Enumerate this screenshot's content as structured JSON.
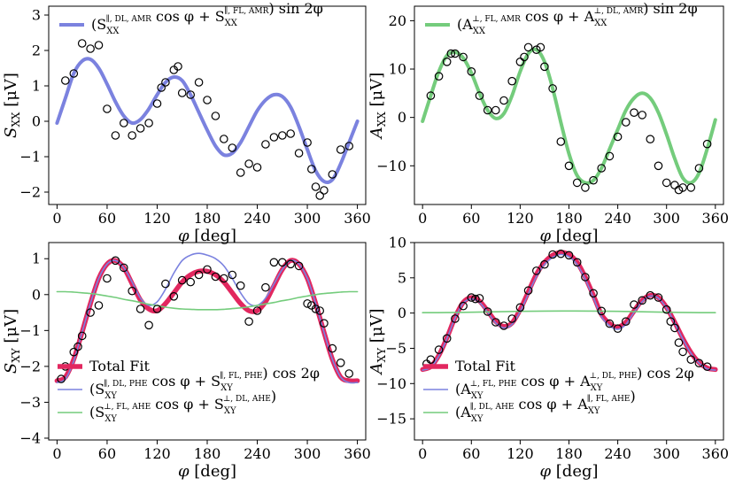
{
  "chart_data": [
    {
      "id": "sxx",
      "type": "line+scatter",
      "xlabel": "φ [deg]",
      "ylabel": "S_XX [μV]",
      "ylabel_main": "S",
      "ylabel_sub": "XX",
      "ylabel_unit": " [μV]",
      "xlim": [
        -10,
        370
      ],
      "ylim": [
        -2.35,
        3.25
      ],
      "xticks": [
        0,
        60,
        120,
        180,
        240,
        300,
        360
      ],
      "yticks": [
        -2,
        -1,
        0,
        1,
        2,
        3
      ],
      "legend_position": "top-center",
      "series": [
        {
          "name": "(S_XX^{∥, DL, AMR} cos φ + S_XX^{∥, FL, AMR}) sin 2φ",
          "kind": "line",
          "color": "#7b82df",
          "x": [
            0,
            10,
            20,
            30,
            40,
            50,
            60,
            70,
            80,
            90,
            100,
            110,
            120,
            130,
            140,
            150,
            160,
            170,
            180,
            190,
            200,
            210,
            220,
            230,
            240,
            250,
            260,
            270,
            280,
            290,
            300,
            310,
            320,
            330,
            340,
            350,
            360
          ],
          "y": [
            -0.05,
            0.65,
            1.35,
            1.7,
            1.75,
            1.5,
            1.05,
            0.55,
            0.15,
            -0.05,
            0.05,
            0.35,
            0.75,
            1.1,
            1.25,
            1.15,
            0.75,
            0.25,
            -0.25,
            -0.7,
            -0.95,
            -0.9,
            -0.6,
            -0.15,
            0.3,
            0.6,
            0.75,
            0.7,
            0.4,
            -0.15,
            -0.8,
            -1.4,
            -1.7,
            -1.65,
            -1.2,
            -0.6,
            0.0
          ]
        },
        {
          "name": "data",
          "kind": "scatter",
          "x": [
            10,
            20,
            30,
            40,
            50,
            60,
            70,
            80,
            90,
            100,
            110,
            120,
            125,
            130,
            140,
            145,
            150,
            160,
            170,
            180,
            190,
            200,
            210,
            220,
            230,
            240,
            250,
            260,
            270,
            280,
            290,
            300,
            305,
            310,
            315,
            320,
            330,
            340,
            350
          ],
          "y": [
            1.15,
            1.35,
            2.2,
            2.05,
            2.15,
            0.35,
            -0.4,
            -0.05,
            -0.4,
            -0.2,
            -0.05,
            0.5,
            0.95,
            1.1,
            1.45,
            1.55,
            0.8,
            0.75,
            1.1,
            0.6,
            0.15,
            -0.5,
            -0.75,
            -1.45,
            -1.2,
            -1.3,
            -0.65,
            -0.45,
            -0.4,
            -0.35,
            -0.9,
            -0.6,
            -1.35,
            -1.85,
            -2.1,
            -1.95,
            -1.5,
            -0.8,
            -0.7
          ]
        }
      ]
    },
    {
      "id": "axx",
      "type": "line+scatter",
      "xlabel": "φ [deg]",
      "ylabel": "A_XX [μV]",
      "ylabel_main": "A",
      "ylabel_sub": "XX",
      "ylabel_unit": " [μV]",
      "xlim": [
        -10,
        370
      ],
      "ylim": [
        -18,
        23
      ],
      "xticks": [
        0,
        60,
        120,
        180,
        240,
        300,
        360
      ],
      "yticks": [
        -10,
        0,
        10,
        20
      ],
      "legend_position": "top-center",
      "series": [
        {
          "name": "(A_XX^{⊥, FL, AMR} cos φ + A_XX^{⊥, DL, AMR}) sin 2φ",
          "kind": "line",
          "color": "#74cc7c",
          "x": [
            0,
            10,
            20,
            30,
            40,
            50,
            60,
            70,
            80,
            90,
            100,
            110,
            120,
            130,
            140,
            150,
            160,
            170,
            180,
            190,
            200,
            210,
            220,
            230,
            240,
            250,
            260,
            270,
            280,
            290,
            300,
            310,
            320,
            330,
            340,
            350,
            360
          ],
          "y": [
            -0.8,
            4.5,
            9.5,
            12.8,
            13.5,
            12.3,
            9.2,
            5,
            1.5,
            -0.2,
            0.8,
            4.5,
            9.5,
            13.2,
            14,
            11.5,
            6,
            -1,
            -7.5,
            -12,
            -13.5,
            -13,
            -10.5,
            -6.5,
            -2.5,
            1.5,
            4,
            5,
            4,
            1,
            -3.5,
            -8.5,
            -12.5,
            -13.5,
            -11.5,
            -6.5,
            -0.5
          ]
        },
        {
          "name": "data",
          "kind": "scatter",
          "x": [
            10,
            20,
            30,
            35,
            40,
            50,
            60,
            70,
            80,
            90,
            100,
            110,
            120,
            125,
            130,
            140,
            145,
            150,
            160,
            170,
            180,
            190,
            200,
            210,
            220,
            230,
            240,
            250,
            260,
            270,
            280,
            290,
            300,
            310,
            315,
            320,
            330,
            340,
            350
          ],
          "y": [
            4.5,
            8.5,
            11.5,
            13.2,
            13.2,
            12.5,
            9.5,
            4.5,
            1.5,
            1.5,
            3.5,
            7.5,
            11.5,
            12.5,
            14.5,
            14,
            14.5,
            10.5,
            6,
            -5,
            -10,
            -13.5,
            -14.5,
            -13,
            -10.5,
            -8,
            -4,
            -1,
            1,
            0.5,
            -4.5,
            -10,
            -13.5,
            -14,
            -15,
            -14.5,
            -14.5,
            -10.5,
            -5.5
          ]
        }
      ]
    },
    {
      "id": "sxy",
      "type": "line+scatter",
      "xlabel": "φ [deg]",
      "ylabel": "S_XY [μV]",
      "ylabel_main": "S",
      "ylabel_sub": "XY",
      "ylabel_unit": " [μV]",
      "xlim": [
        -10,
        370
      ],
      "ylim": [
        -4.05,
        1.45
      ],
      "xticks": [
        0,
        60,
        120,
        180,
        240,
        300,
        360
      ],
      "yticks": [
        -4,
        -3,
        -2,
        -1,
        0,
        1
      ],
      "legend_position": "bottom-left",
      "series": [
        {
          "name": "Total Fit",
          "kind": "line",
          "color": "#e2275f",
          "x": [
            0,
            10,
            20,
            30,
            40,
            50,
            60,
            70,
            80,
            90,
            100,
            110,
            120,
            130,
            140,
            150,
            160,
            170,
            180,
            190,
            200,
            210,
            220,
            230,
            240,
            250,
            260,
            270,
            280,
            290,
            300,
            310,
            320,
            330,
            340,
            350,
            360
          ],
          "y": [
            -2.4,
            -2.3,
            -1.8,
            -1.05,
            -0.25,
            0.45,
            0.85,
            0.95,
            0.75,
            0.3,
            -0.15,
            -0.4,
            -0.45,
            -0.25,
            0.05,
            0.35,
            0.55,
            0.65,
            0.65,
            0.55,
            0.35,
            0.05,
            -0.25,
            -0.45,
            -0.45,
            -0.2,
            0.25,
            0.7,
            0.95,
            0.85,
            0.45,
            -0.25,
            -1.05,
            -1.8,
            -2.3,
            -2.4,
            -2.4
          ]
        },
        {
          "name": "(S_XY^{∥, DL, PHE} cos φ + S_XY^{∥, FL, PHE}) cos 2φ",
          "kind": "line",
          "color": "#7b82df",
          "x": [
            0,
            10,
            20,
            30,
            40,
            50,
            60,
            70,
            80,
            90,
            100,
            110,
            120,
            130,
            140,
            150,
            160,
            170,
            180,
            190,
            200,
            210,
            220,
            230,
            240,
            250,
            260,
            270,
            280,
            290,
            300,
            310,
            320,
            330,
            340,
            350,
            360
          ],
          "y": [
            -2.45,
            -2.35,
            -1.85,
            -1.05,
            -0.25,
            0.45,
            0.85,
            0.95,
            0.75,
            0.35,
            -0.1,
            -0.3,
            -0.2,
            0.15,
            0.6,
            0.95,
            1.1,
            1.15,
            1.1,
            1.0,
            0.8,
            0.45,
            0.05,
            -0.25,
            -0.3,
            -0.1,
            0.3,
            0.7,
            0.95,
            0.85,
            0.45,
            -0.25,
            -1.05,
            -1.8,
            -2.3,
            -2.45,
            -2.45
          ]
        },
        {
          "name": "(S_XY^{⊥, FL, AHE} cos φ + S_XY^{⊥, DL, AHE})",
          "kind": "line",
          "color": "#74cc7c",
          "x": [
            0,
            10,
            20,
            30,
            40,
            50,
            60,
            70,
            80,
            90,
            100,
            110,
            120,
            130,
            140,
            150,
            160,
            170,
            180,
            190,
            200,
            210,
            220,
            230,
            240,
            250,
            260,
            270,
            280,
            290,
            300,
            310,
            320,
            330,
            340,
            350,
            360
          ],
          "y": [
            0.08,
            0.08,
            0.07,
            0.05,
            0.03,
            0.0,
            -0.04,
            -0.08,
            -0.13,
            -0.17,
            -0.22,
            -0.27,
            -0.31,
            -0.35,
            -0.38,
            -0.4,
            -0.41,
            -0.42,
            -0.42,
            -0.42,
            -0.41,
            -0.39,
            -0.37,
            -0.34,
            -0.3,
            -0.26,
            -0.22,
            -0.17,
            -0.13,
            -0.08,
            -0.04,
            0.0,
            0.03,
            0.05,
            0.07,
            0.08,
            0.08
          ]
        },
        {
          "name": "data",
          "kind": "scatter",
          "x": [
            5,
            10,
            20,
            25,
            30,
            40,
            50,
            60,
            70,
            80,
            90,
            100,
            110,
            120,
            130,
            140,
            150,
            160,
            170,
            180,
            190,
            200,
            210,
            220,
            230,
            240,
            250,
            260,
            270,
            280,
            290,
            300,
            305,
            310,
            315,
            320,
            330,
            340,
            350
          ],
          "y": [
            -2.35,
            -2.0,
            -1.6,
            -1.45,
            -1.15,
            -0.5,
            -0.3,
            0.45,
            0.95,
            0.75,
            0.1,
            -0.4,
            -0.85,
            -0.4,
            0.3,
            -0.05,
            0.4,
            0.35,
            0.55,
            0.7,
            0.5,
            0.45,
            0.55,
            0.25,
            -0.75,
            -0.45,
            0.2,
            0.9,
            0.9,
            0.85,
            0.8,
            -0.25,
            -0.3,
            -0.4,
            -0.45,
            -0.8,
            -1.5,
            -1.9,
            -2.2
          ]
        }
      ]
    },
    {
      "id": "axy",
      "type": "line+scatter",
      "xlabel": "φ [deg]",
      "ylabel": "A_XY [μV]",
      "ylabel_main": "A",
      "ylabel_sub": "XY",
      "ylabel_unit": " [μV]",
      "xlim": [
        -10,
        370
      ],
      "ylim": [
        -18,
        10
      ],
      "xticks": [
        0,
        60,
        120,
        180,
        240,
        300,
        360
      ],
      "yticks": [
        -15,
        -10,
        -5,
        0,
        5,
        10
      ],
      "legend_position": "bottom-center",
      "series": [
        {
          "name": "Total Fit",
          "kind": "line",
          "color": "#e2275f",
          "x": [
            0,
            10,
            20,
            30,
            40,
            50,
            60,
            70,
            80,
            90,
            100,
            110,
            120,
            130,
            140,
            150,
            160,
            170,
            180,
            190,
            200,
            210,
            220,
            230,
            240,
            250,
            260,
            270,
            280,
            290,
            300,
            310,
            320,
            330,
            340,
            350,
            360
          ],
          "y": [
            -8,
            -7.6,
            -6,
            -3.5,
            -0.6,
            1.5,
            2.2,
            1.7,
            0.3,
            -1.2,
            -1.9,
            -1.4,
            0.5,
            3.0,
            5.5,
            7.2,
            8.2,
            8.6,
            8.3,
            7.2,
            5.1,
            2.5,
            -0.2,
            -1.5,
            -2.0,
            -1.3,
            0.3,
            1.8,
            2.5,
            2.2,
            0.8,
            -1.3,
            -3.6,
            -5.6,
            -7.0,
            -7.8,
            -8
          ]
        },
        {
          "name": "(A_XY^{⊥, FL, PHE} cos φ + A_XY^{⊥, DL, PHE}) cos 2φ",
          "kind": "line",
          "color": "#7b82df",
          "x": [
            0,
            10,
            20,
            30,
            40,
            50,
            60,
            70,
            80,
            90,
            100,
            110,
            120,
            130,
            140,
            150,
            160,
            170,
            180,
            190,
            200,
            210,
            220,
            230,
            240,
            250,
            260,
            270,
            280,
            290,
            300,
            310,
            320,
            330,
            340,
            350,
            360
          ],
          "y": [
            -8.1,
            -7.7,
            -6.1,
            -3.6,
            -0.7,
            1.4,
            2.0,
            1.5,
            0.1,
            -1.4,
            -2.1,
            -1.6,
            0.2,
            2.7,
            5.2,
            6.9,
            7.9,
            8.3,
            8.0,
            6.9,
            4.8,
            2.2,
            -0.5,
            -1.8,
            -2.3,
            -1.6,
            0.1,
            1.6,
            2.4,
            2.1,
            0.7,
            -1.4,
            -3.7,
            -5.7,
            -7.1,
            -7.9,
            -8.1
          ]
        },
        {
          "name": "(A_XY^{∥, DL, AHE} cos φ + A_XY^{∥, FL, AHE})",
          "kind": "line",
          "color": "#74cc7c",
          "x": [
            0,
            30,
            60,
            90,
            120,
            150,
            180,
            210,
            240,
            270,
            300,
            330,
            360
          ],
          "y": [
            0.05,
            0.07,
            0.12,
            0.18,
            0.24,
            0.28,
            0.3,
            0.28,
            0.24,
            0.18,
            0.12,
            0.07,
            0.05
          ]
        },
        {
          "name": "data",
          "kind": "scatter",
          "x": [
            5,
            10,
            20,
            30,
            40,
            50,
            60,
            65,
            70,
            80,
            90,
            100,
            110,
            120,
            130,
            140,
            150,
            160,
            170,
            180,
            190,
            200,
            210,
            220,
            230,
            240,
            250,
            260,
            270,
            280,
            290,
            300,
            305,
            310,
            315,
            320,
            330,
            340,
            350
          ],
          "y": [
            -7.2,
            -6.6,
            -5.2,
            -3.6,
            -0.8,
            1.0,
            2.2,
            2.0,
            2.1,
            0.2,
            -1.3,
            -1.8,
            -0.8,
            0.8,
            3.2,
            6.0,
            6.9,
            8.3,
            8.4,
            8.2,
            7.2,
            5.1,
            2.8,
            0.3,
            -1.5,
            -2.2,
            -1.2,
            1.2,
            1.8,
            2.5,
            2.2,
            0.5,
            -1.2,
            -2.1,
            -4.2,
            -5.5,
            -6.6,
            -7.1,
            -7.6
          ]
        }
      ]
    }
  ]
}
